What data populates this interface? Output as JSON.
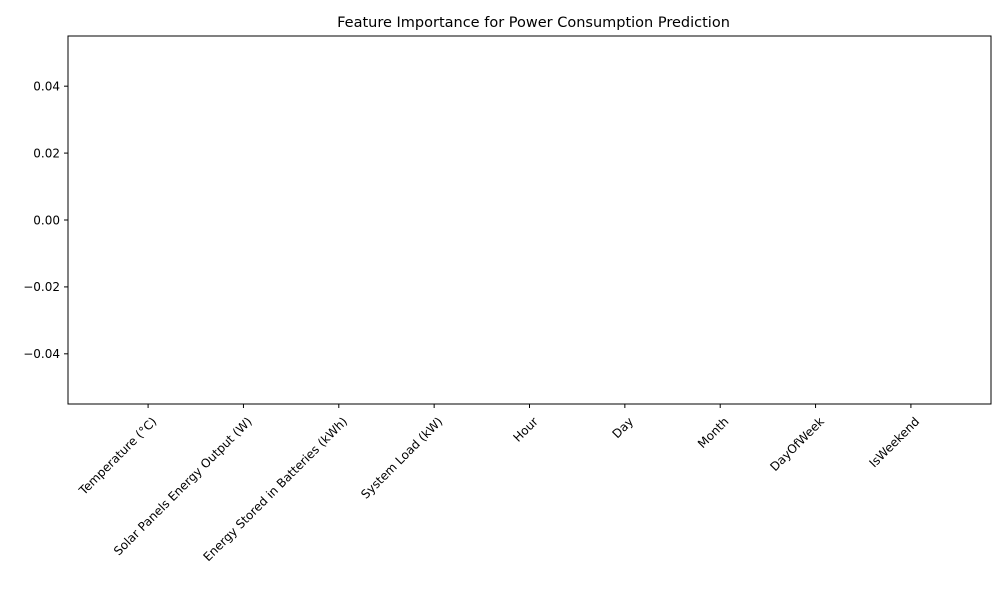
{
  "chart_data": {
    "type": "bar",
    "title": "Feature Importance for Power Consumption Prediction",
    "xlabel": "",
    "ylabel": "",
    "categories": [
      "Temperature (°C)",
      "Solar Panels Energy Output (W)",
      "Energy Stored in Batteries (kWh)",
      "System Load (kW)",
      "Hour",
      "Day",
      "Month",
      "DayOfWeek",
      "IsWeekend"
    ],
    "values": [
      0,
      0,
      0,
      0,
      0,
      0,
      0,
      0,
      0
    ],
    "ylim": [
      -0.055,
      0.055
    ],
    "yticks": [
      -0.04,
      -0.02,
      0.0,
      0.02,
      0.04
    ],
    "ytick_labels": [
      "−0.04",
      "−0.02",
      "0.00",
      "0.02",
      "0.04"
    ],
    "grid": false,
    "legend": "none",
    "bar_color": "#1f77b4"
  }
}
